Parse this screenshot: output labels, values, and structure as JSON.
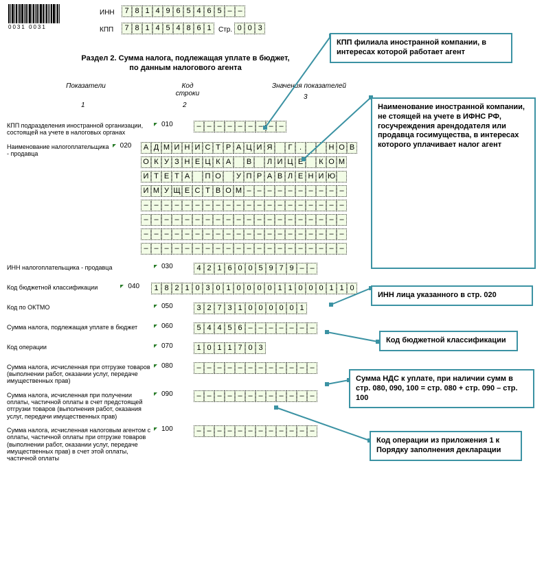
{
  "header": {
    "barcode_number": "0031 0031",
    "inn_label": "ИНН",
    "inn": [
      "7",
      "8",
      "1",
      "4",
      "9",
      "6",
      "5",
      "4",
      "6",
      "5",
      "–",
      "–"
    ],
    "kpp_label": "КПП",
    "kpp": [
      "7",
      "8",
      "1",
      "4",
      "5",
      "4",
      "8",
      "6",
      "1"
    ],
    "page_label": "Стр.",
    "page": [
      "0",
      "0",
      "3"
    ]
  },
  "section_title_l1": "Раздел 2. Сумма налога, подлежащая уплате в бюджет,",
  "section_title_l2": "по данным налогового агента",
  "col_headers": {
    "h1": "Показатели",
    "h2": "Код строки",
    "h3": "Значения показателей",
    "s1": "1",
    "s2": "2",
    "s3": "3"
  },
  "rows": [
    {
      "label": "КПП подразделения иностранной организации, состоящей на учете в налоговых органах",
      "code": "010",
      "lines": [
        [
          "–",
          "–",
          "–",
          "–",
          "–",
          "–",
          "–",
          "–",
          "–"
        ]
      ]
    },
    {
      "label": "Наименование налогоплательщика - продавца",
      "code": "020",
      "lines": [
        [
          "А",
          "Д",
          "М",
          "И",
          "Н",
          "И",
          "С",
          "Т",
          "Р",
          "А",
          "Ц",
          "И",
          "Я",
          " ",
          "Г",
          ".",
          "",
          " ",
          "Н",
          "О",
          "В"
        ],
        [
          "О",
          "К",
          "У",
          "З",
          "Н",
          "Е",
          "Ц",
          "К",
          "А",
          " ",
          "В",
          " ",
          "Л",
          "И",
          "Ц",
          "Е",
          " ",
          "К",
          "О",
          "М"
        ],
        [
          "И",
          "Т",
          "Е",
          "Т",
          "А",
          " ",
          "П",
          "О",
          " ",
          "У",
          "П",
          "Р",
          "А",
          "В",
          "Л",
          "Е",
          "Н",
          "И",
          "Ю",
          " "
        ],
        [
          "И",
          "М",
          "У",
          "Щ",
          "Е",
          "С",
          "Т",
          "В",
          "О",
          "М",
          "–",
          "–",
          "–",
          "–",
          "–",
          "–",
          "–",
          "–",
          "–",
          "–"
        ],
        [
          "–",
          "–",
          "–",
          "–",
          "–",
          "–",
          "–",
          "–",
          "–",
          "–",
          "–",
          "–",
          "–",
          "–",
          "–",
          "–",
          "–",
          "–",
          "–",
          "–"
        ],
        [
          "–",
          "–",
          "–",
          "–",
          "–",
          "–",
          "–",
          "–",
          "–",
          "–",
          "–",
          "–",
          "–",
          "–",
          "–",
          "–",
          "–",
          "–",
          "–",
          "–"
        ],
        [
          "–",
          "–",
          "–",
          "–",
          "–",
          "–",
          "–",
          "–",
          "–",
          "–",
          "–",
          "–",
          "–",
          "–",
          "–",
          "–",
          "–",
          "–",
          "–",
          "–"
        ],
        [
          "–",
          "–",
          "–",
          "–",
          "–",
          "–",
          "–",
          "–",
          "–",
          "–",
          "–",
          "–",
          "–",
          "–",
          "–",
          "–",
          "–",
          "–",
          "–",
          "–"
        ]
      ]
    },
    {
      "label": "ИНН налогоплательщика - продавца",
      "code": "030",
      "lines": [
        [
          "4",
          "2",
          "1",
          "6",
          "0",
          "0",
          "5",
          "9",
          "7",
          "9",
          "–",
          "–"
        ]
      ]
    },
    {
      "label": "Код бюджетной классификации",
      "code": "040",
      "lines": [
        [
          "1",
          "8",
          "2",
          "1",
          "0",
          "3",
          "0",
          "1",
          "0",
          "0",
          "0",
          "0",
          "1",
          "1",
          "0",
          "0",
          "0",
          "1",
          "1",
          "0"
        ]
      ]
    },
    {
      "label": "Код по ОКТМО",
      "code": "050",
      "lines": [
        [
          "3",
          "2",
          "7",
          "3",
          "1",
          "0",
          "0",
          "0",
          "0",
          "0",
          "1"
        ]
      ]
    },
    {
      "label": "Сумма налога, подлежащая уплате в бюджет",
      "code": "060",
      "lines": [
        [
          "5",
          "4",
          "4",
          "5",
          "6",
          "–",
          "–",
          "–",
          "–",
          "–",
          "–",
          "–"
        ]
      ]
    },
    {
      "label": "Код операции",
      "code": "070",
      "lines": [
        [
          "1",
          "0",
          "1",
          "1",
          "7",
          "0",
          "3"
        ]
      ]
    },
    {
      "label": "Сумма налога, исчисленная при отгрузке товаров (выполнении работ, оказании услуг, передаче имущественных прав)",
      "code": "080",
      "lines": [
        [
          "–",
          "–",
          "–",
          "–",
          "–",
          "–",
          "–",
          "–",
          "–",
          "–",
          "–",
          "–"
        ]
      ]
    },
    {
      "label": "Сумма налога, исчисленная при получении оплаты, частичной оплаты в счет предстоящей отгрузки товаров (выполнения работ, оказания услуг, передачи имущественных прав)",
      "code": "090",
      "lines": [
        [
          "–",
          "–",
          "–",
          "–",
          "–",
          "–",
          "–",
          "–",
          "–",
          "–",
          "–",
          "–"
        ]
      ]
    },
    {
      "label": "Сумма налога, исчисленная налоговым агентом с оплаты, частичной оплаты при отгрузке товаров (выполнении работ, оказании услуг, передаче имущественных прав) в счет этой оплаты, частичной оплаты",
      "code": "100",
      "lines": [
        [
          "–",
          "–",
          "–",
          "–",
          "–",
          "–",
          "–",
          "–",
          "–",
          "–",
          "–",
          "–"
        ]
      ]
    }
  ],
  "callouts": {
    "c1": "КПП филиала иностранной компании, в интересах которой работает агент",
    "c2": "Наименование иностранной компании, не стоящей на учете в ИФНС РФ, госучреждения арендодателя или продавца госимущества, в интересах которого уплачивает налог агент",
    "c3": "ИНН лица указанного в стр. 020",
    "c4": "Код бюджетной классификации",
    "c5": "Сумма НДС к уплате, при наличии сумм в стр. 080, 090, 100 = стр. 080 + стр. 090 – стр. 100",
    "c6": "Код операции из приложения 1 к Порядку заполнения декларации"
  },
  "colors": {
    "cell_bg": "#f2fce6",
    "callout_border": "#3b92a3"
  }
}
